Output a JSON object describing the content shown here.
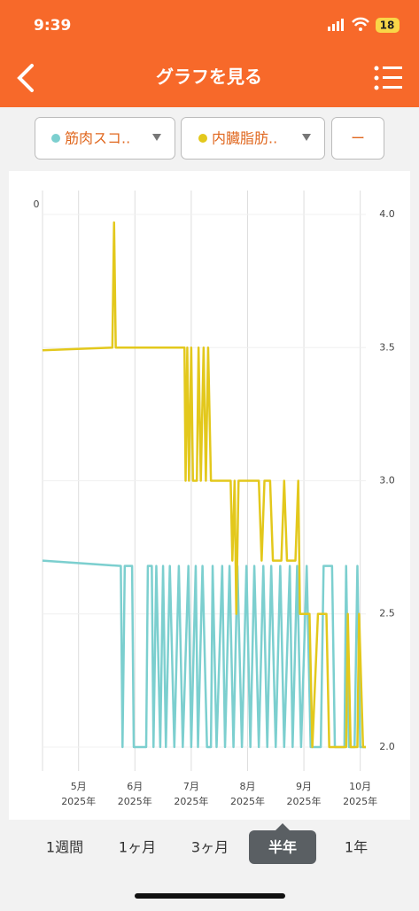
{
  "status_bar": {
    "time": "9:39",
    "battery": "18"
  },
  "header": {
    "title": "グラフを見る"
  },
  "toolbar": {
    "remove_button": "ー"
  },
  "tabs": {
    "items": [
      "1週間",
      "1ヶ月",
      "3ヶ月",
      "半年",
      "1年"
    ],
    "selected": "半年"
  },
  "chart_data": {
    "type": "line",
    "left_axis_label": "0",
    "xlim": [
      4.36,
      10.1
    ],
    "xticks": [
      {
        "value": 5,
        "label": "5月",
        "year": "2025年"
      },
      {
        "value": 6,
        "label": "6月",
        "year": "2025年"
      },
      {
        "value": 7,
        "label": "7月",
        "year": "2025年"
      },
      {
        "value": 8,
        "label": "8月",
        "year": "2025年"
      },
      {
        "value": 9,
        "label": "9月",
        "year": "2025年"
      },
      {
        "value": 10,
        "label": "10月",
        "year": "2025年"
      }
    ],
    "ylim": [
      1.91,
      4.09
    ],
    "yticks": [
      {
        "value": 4,
        "label": "4.0"
      },
      {
        "value": 3.5,
        "label": "3.5"
      },
      {
        "value": 3,
        "label": "3.0"
      },
      {
        "value": 2.5,
        "label": "2.5"
      },
      {
        "value": 2,
        "label": "2.0"
      }
    ],
    "grid": true,
    "series": [
      {
        "name": "筋肉スコ..",
        "color": "#7ccfcf",
        "x": [
          4.36,
          5.75,
          5.78,
          5.82,
          5.95,
          5.98,
          6.2,
          6.23,
          6.3,
          6.33,
          6.38,
          6.45,
          6.5,
          6.55,
          6.62,
          6.7,
          6.78,
          6.85,
          6.95,
          7.0,
          7.08,
          7.12,
          7.2,
          7.28,
          7.35,
          7.38,
          7.45,
          7.55,
          7.6,
          7.68,
          7.75,
          7.82,
          7.9,
          7.98,
          8.05,
          8.12,
          8.2,
          8.28,
          8.35,
          8.42,
          8.5,
          8.58,
          8.65,
          8.75,
          8.8,
          8.88,
          8.95,
          9.05,
          9.12,
          9.3,
          9.35,
          9.5,
          9.55,
          9.72,
          9.75,
          9.8,
          9.9,
          9.95,
          10.0,
          10.1
        ],
        "values": [
          2.7,
          2.68,
          2.0,
          2.68,
          2.68,
          2.0,
          2.0,
          2.68,
          2.68,
          2.0,
          2.68,
          2.0,
          2.68,
          2.0,
          2.68,
          2.0,
          2.68,
          2.0,
          2.68,
          2.0,
          2.68,
          2.0,
          2.68,
          2.0,
          2.0,
          2.68,
          2.0,
          2.68,
          2.0,
          2.68,
          2.0,
          2.68,
          2.0,
          2.68,
          2.0,
          2.68,
          2.0,
          2.68,
          2.0,
          2.68,
          2.0,
          2.68,
          2.0,
          2.68,
          2.0,
          2.68,
          2.0,
          2.68,
          2.0,
          2.0,
          2.68,
          2.68,
          2.0,
          2.0,
          2.68,
          2.0,
          2.0,
          2.68,
          2.0,
          2.0
        ]
      },
      {
        "name": "内臓脂肪..",
        "color": "#e3c81c",
        "x": [
          4.36,
          5.6,
          5.63,
          5.66,
          6.88,
          6.9,
          6.93,
          6.96,
          7.0,
          7.03,
          7.1,
          7.13,
          7.17,
          7.22,
          7.26,
          7.3,
          7.35,
          7.7,
          7.73,
          7.77,
          7.8,
          7.84,
          8.2,
          8.25,
          8.3,
          8.4,
          8.45,
          8.6,
          8.65,
          8.7,
          8.85,
          8.9,
          8.93,
          9.1,
          9.15,
          9.25,
          9.4,
          9.45,
          9.75,
          9.78,
          9.83,
          9.95,
          9.98,
          10.05,
          10.1
        ],
        "values": [
          3.49,
          3.5,
          3.97,
          3.5,
          3.5,
          3.0,
          3.5,
          3.0,
          3.5,
          3.0,
          3.0,
          3.5,
          3.0,
          3.5,
          3.0,
          3.5,
          3.0,
          3.0,
          2.7,
          3.0,
          2.5,
          3.0,
          3.0,
          2.7,
          3.0,
          3.0,
          2.7,
          2.7,
          3.0,
          2.7,
          2.7,
          3.0,
          2.5,
          2.5,
          2.0,
          2.5,
          2.5,
          2.0,
          2.0,
          2.5,
          2.0,
          2.0,
          2.5,
          2.0,
          2.0
        ]
      }
    ]
  }
}
